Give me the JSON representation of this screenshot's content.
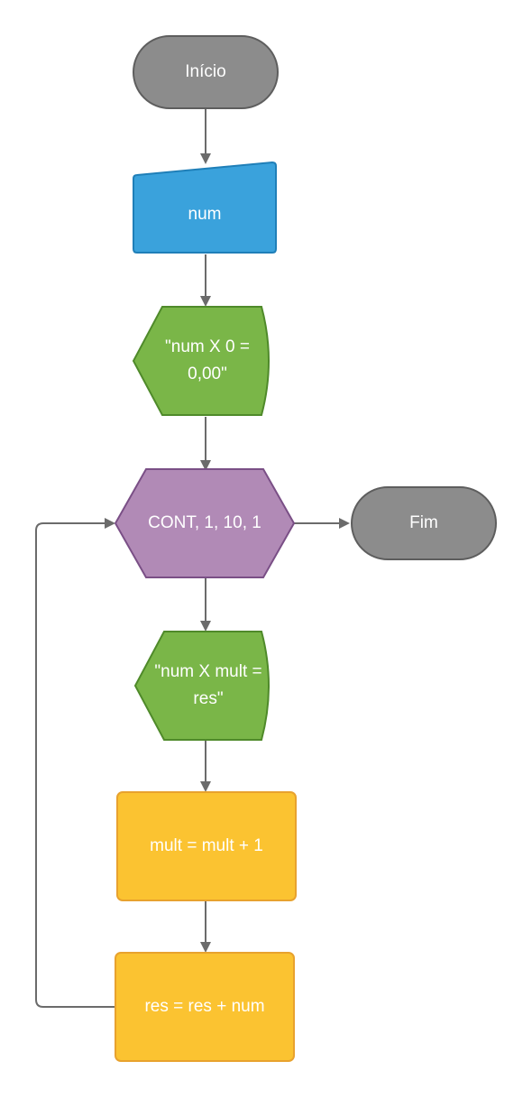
{
  "colors": {
    "terminal_fill": "#8c8c8c",
    "terminal_stroke": "#5e5e5e",
    "input_fill": "#3aa2dc",
    "input_stroke": "#1f7fb8",
    "display_fill": "#7ab648",
    "display_stroke": "#4f8a2a",
    "loop_fill": "#b18ab6",
    "loop_stroke": "#7a4f86",
    "process_fill": "#fbc331",
    "process_stroke": "#e8a22e",
    "connector": "#6b6b6b"
  },
  "nodes": {
    "start": {
      "label": "Início"
    },
    "input": {
      "label": "num"
    },
    "display1": {
      "line1": "\"num X 0 =",
      "line2": "0,00\""
    },
    "loop": {
      "label": "CONT, 1, 10, 1"
    },
    "end": {
      "label": "Fim"
    },
    "display2": {
      "line1": "\"num X mult =",
      "line2": "res\""
    },
    "process1": {
      "label": "mult = mult + 1"
    },
    "process2": {
      "label": "res = res + num"
    }
  }
}
